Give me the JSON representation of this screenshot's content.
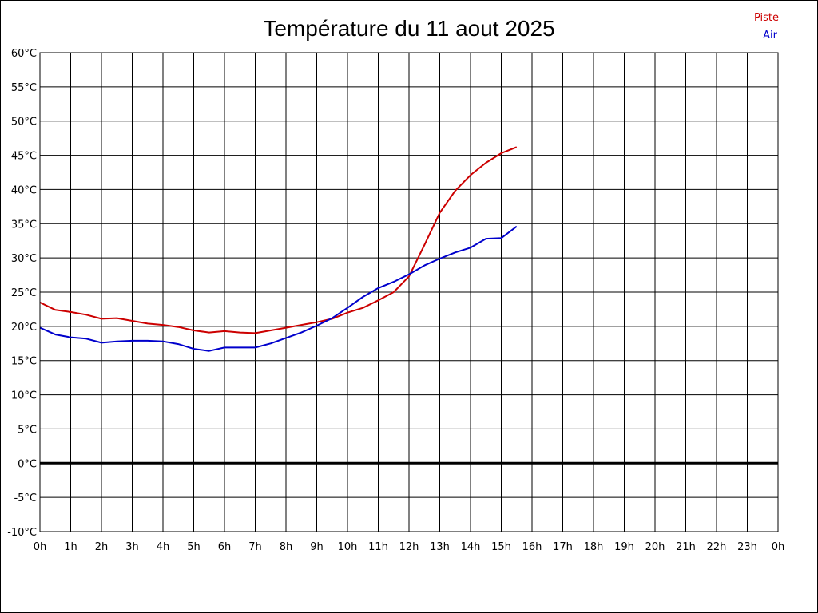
{
  "chart_data": {
    "type": "line",
    "title": "Température du 11 aout 2025",
    "xlabel": "",
    "ylabel": "",
    "x_tick_labels": [
      "0h",
      "1h",
      "2h",
      "3h",
      "4h",
      "5h",
      "6h",
      "7h",
      "8h",
      "9h",
      "10h",
      "11h",
      "12h",
      "13h",
      "14h",
      "15h",
      "16h",
      "17h",
      "18h",
      "19h",
      "20h",
      "21h",
      "22h",
      "23h",
      "0h"
    ],
    "y_tick_labels": [
      "60°C",
      "55°C",
      "50°C",
      "45°C",
      "40°C",
      "35°C",
      "30°C",
      "25°C",
      "20°C",
      "15°C",
      "10°C",
      "5°C",
      "0°C",
      "-5°C",
      "-10°C"
    ],
    "xlim": [
      0,
      24
    ],
    "ylim": [
      -10,
      60
    ],
    "grid": true,
    "legend_position": "top-right",
    "x": [
      0,
      0.5,
      1,
      1.5,
      2,
      2.5,
      3,
      3.5,
      4,
      4.5,
      5,
      5.5,
      6,
      6.5,
      7,
      7.5,
      8,
      8.5,
      9,
      9.5,
      10,
      10.5,
      11,
      11.5,
      12,
      12.5,
      13,
      13.5,
      14,
      14.5,
      15,
      15.5
    ],
    "series": [
      {
        "name": "Piste",
        "color": "#cc0000",
        "values": [
          23.5,
          22.4,
          22.1,
          21.7,
          21.1,
          21.2,
          20.8,
          20.4,
          20.2,
          19.9,
          19.4,
          19.1,
          19.3,
          19.1,
          19.0,
          19.4,
          19.8,
          20.2,
          20.6,
          21.1,
          22.0,
          22.7,
          23.8,
          25.0,
          27.3,
          31.9,
          36.6,
          39.8,
          42.1,
          43.9,
          45.3,
          46.2
        ]
      },
      {
        "name": "Air",
        "color": "#0000cc",
        "values": [
          19.8,
          18.8,
          18.4,
          18.2,
          17.6,
          17.8,
          17.9,
          17.9,
          17.8,
          17.4,
          16.7,
          16.4,
          16.9,
          16.9,
          16.9,
          17.5,
          18.3,
          19.1,
          20.1,
          21.2,
          22.7,
          24.3,
          25.6,
          26.5,
          27.6,
          28.9,
          29.9,
          30.8,
          31.5,
          32.8,
          32.9,
          34.6
        ]
      }
    ]
  }
}
